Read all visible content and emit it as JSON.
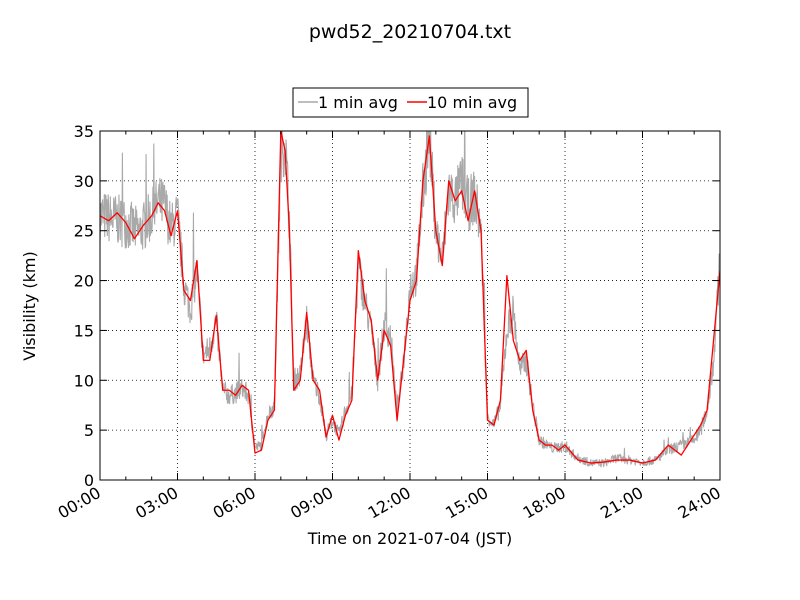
{
  "chart_data": {
    "type": "line",
    "title": "pwd52_20210704.txt",
    "xlabel": "Time on 2021-07-04 (JST)",
    "ylabel": "Visibility (km)",
    "xlim": [
      "00:00",
      "24:00"
    ],
    "ylim": [
      0,
      35
    ],
    "x_ticks": [
      "00:00",
      "03:00",
      "06:00",
      "09:00",
      "12:00",
      "15:00",
      "18:00",
      "21:00",
      "24:00"
    ],
    "y_ticks": [
      0,
      5,
      10,
      15,
      20,
      25,
      30,
      35
    ],
    "grid": true,
    "legend": {
      "position": "top-center",
      "entries": [
        "1 min avg",
        "10 min avg"
      ]
    },
    "series": [
      {
        "name": "1 min avg",
        "color": "#a9a9a9",
        "noisy": true,
        "x": [
          "00:00",
          "00:30",
          "01:00",
          "01:30",
          "02:00",
          "02:15",
          "02:30",
          "02:45",
          "03:00",
          "03:15",
          "03:30",
          "03:45",
          "04:00",
          "04:15",
          "04:30",
          "04:45",
          "05:00",
          "05:15",
          "05:30",
          "05:45",
          "06:00",
          "06:15",
          "06:30",
          "06:45",
          "07:00",
          "07:10",
          "07:20",
          "07:30",
          "07:45",
          "08:00",
          "08:15",
          "08:30",
          "08:45",
          "09:00",
          "09:15",
          "09:30",
          "09:45",
          "10:00",
          "10:15",
          "10:30",
          "10:45",
          "11:00",
          "11:15",
          "11:30",
          "11:45",
          "12:00",
          "12:15",
          "12:30",
          "12:45",
          "13:00",
          "13:15",
          "13:30",
          "13:45",
          "14:00",
          "14:15",
          "14:30",
          "14:45",
          "15:00",
          "15:15",
          "15:30",
          "15:45",
          "16:00",
          "16:15",
          "16:30",
          "16:45",
          "17:00",
          "17:15",
          "17:30",
          "17:45",
          "18:00",
          "18:30",
          "19:00",
          "19:30",
          "20:00",
          "20:30",
          "21:00",
          "21:30",
          "22:00",
          "22:30",
          "23:00",
          "23:15",
          "23:30",
          "23:45",
          "24:00"
        ],
        "y": [
          26.5,
          26.2,
          25.8,
          24.8,
          26.5,
          27.8,
          27.5,
          25.2,
          26.5,
          19.5,
          17.2,
          21.0,
          12.5,
          13.2,
          16.0,
          9.0,
          8.5,
          8.7,
          9.2,
          8.5,
          3.2,
          3.5,
          6.5,
          7.5,
          33.0,
          34.0,
          26.0,
          10.0,
          10.5,
          16.0,
          10.0,
          8.5,
          4.5,
          6.0,
          4.5,
          7.0,
          8.5,
          21.5,
          18.0,
          15.0,
          10.0,
          15.5,
          14.5,
          6.5,
          12.0,
          19.5,
          20.5,
          29.0,
          34.5,
          25.0,
          22.0,
          29.0,
          28.0,
          30.0,
          27.5,
          28.5,
          25.0,
          6.5,
          5.5,
          7.5,
          15.0,
          17.0,
          11.0,
          12.0,
          7.5,
          4.0,
          3.6,
          3.2,
          3.3,
          3.3,
          2.2,
          1.7,
          1.7,
          2.2,
          2.0,
          1.8,
          2.0,
          3.0,
          3.5,
          4.0,
          5.0,
          7.0,
          12.0,
          22.0
        ]
      },
      {
        "name": "10 min avg",
        "color": "#ff0000",
        "noisy": false,
        "x": [
          "00:00",
          "00:20",
          "00:40",
          "01:00",
          "01:20",
          "01:40",
          "02:00",
          "02:15",
          "02:30",
          "02:45",
          "03:00",
          "03:15",
          "03:30",
          "03:45",
          "04:00",
          "04:15",
          "04:30",
          "04:45",
          "05:00",
          "05:15",
          "05:30",
          "05:45",
          "06:00",
          "06:15",
          "06:30",
          "06:45",
          "07:00",
          "07:10",
          "07:20",
          "07:30",
          "07:45",
          "08:00",
          "08:15",
          "08:30",
          "08:45",
          "09:00",
          "09:15",
          "09:30",
          "09:45",
          "10:00",
          "10:15",
          "10:30",
          "10:45",
          "11:00",
          "11:15",
          "11:30",
          "11:45",
          "12:00",
          "12:15",
          "12:30",
          "12:45",
          "13:00",
          "13:15",
          "13:30",
          "13:45",
          "14:00",
          "14:15",
          "14:30",
          "14:45",
          "15:00",
          "15:15",
          "15:30",
          "15:45",
          "16:00",
          "16:15",
          "16:30",
          "16:45",
          "17:00",
          "17:15",
          "17:30",
          "17:45",
          "18:00",
          "18:30",
          "19:00",
          "19:30",
          "20:00",
          "20:30",
          "21:00",
          "21:30",
          "22:00",
          "22:30",
          "23:00",
          "23:15",
          "23:30",
          "23:45",
          "24:00"
        ],
        "y": [
          26.5,
          26.0,
          26.8,
          25.8,
          24.2,
          25.5,
          26.5,
          27.8,
          27.0,
          24.5,
          27.0,
          19.0,
          18.0,
          22.0,
          12.0,
          12.0,
          16.5,
          9.0,
          9.0,
          8.5,
          9.5,
          9.0,
          2.7,
          3.0,
          6.0,
          7.0,
          35.0,
          33.0,
          25.0,
          9.0,
          10.0,
          16.8,
          10.0,
          9.0,
          4.3,
          6.5,
          4.0,
          6.5,
          8.0,
          23.0,
          18.0,
          16.0,
          10.0,
          15.0,
          13.5,
          6.0,
          12.0,
          18.0,
          20.0,
          30.0,
          34.5,
          25.0,
          21.5,
          30.0,
          28.0,
          29.0,
          26.0,
          29.0,
          25.0,
          6.0,
          5.5,
          8.0,
          20.5,
          14.0,
          12.0,
          13.0,
          7.0,
          4.0,
          3.5,
          3.5,
          3.0,
          3.5,
          2.0,
          1.7,
          1.8,
          2.0,
          2.0,
          1.7,
          2.0,
          3.5,
          2.5,
          4.5,
          5.5,
          7.0,
          14.0,
          21.0
        ]
      }
    ]
  }
}
